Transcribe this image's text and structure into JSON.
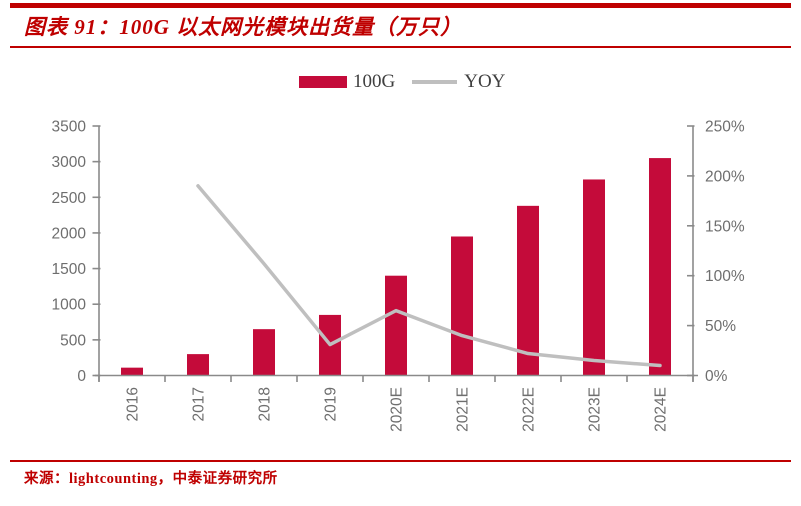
{
  "header": {
    "title": "图表 91：100G 以太网光模块出货量（万只）"
  },
  "legend": [
    {
      "label": "100G",
      "marker": "bar-swatch"
    },
    {
      "label": "YOY",
      "marker": "line-swatch"
    }
  ],
  "chart_data": {
    "type": "bar",
    "subtype": "combo-bar-line-dual-axis",
    "title": "100G 以太网光模块出货量（万只）",
    "categories": [
      "2016",
      "2017",
      "2018",
      "2019",
      "2020E",
      "2021E",
      "2022E",
      "2023E",
      "2024E"
    ],
    "series": [
      {
        "name": "100G",
        "chart": "bar",
        "y_axis": "left",
        "unit": "万只",
        "values": [
          110,
          300,
          650,
          850,
          1400,
          1950,
          2380,
          2750,
          3050
        ]
      },
      {
        "name": "YOY",
        "chart": "line",
        "y_axis": "right",
        "unit": "%",
        "values": [
          null,
          190,
          112,
          31,
          65,
          40,
          22,
          15,
          10
        ]
      }
    ],
    "left_axis": {
      "min": 0,
      "max": 3500,
      "step": 500,
      "ticks": [
        "0",
        "500",
        "1000",
        "1500",
        "2000",
        "2500",
        "3000",
        "3500"
      ]
    },
    "right_axis": {
      "min": 0,
      "max": 250,
      "step": 50,
      "ticks": [
        "0%",
        "50%",
        "100%",
        "150%",
        "200%",
        "250%"
      ]
    },
    "grid": false,
    "legend_position": "top-center",
    "x_label_rotation": -90
  },
  "footer": {
    "source": "来源：lightcounting，中泰证券研究所"
  },
  "colors": {
    "accent_red": "#BF0000",
    "bar": "#C40B3A",
    "line": "#BFBFBF",
    "axis": "#8A8A8A",
    "tick_text": "#6E6E6E",
    "legend_text": "#3F3F3F"
  }
}
